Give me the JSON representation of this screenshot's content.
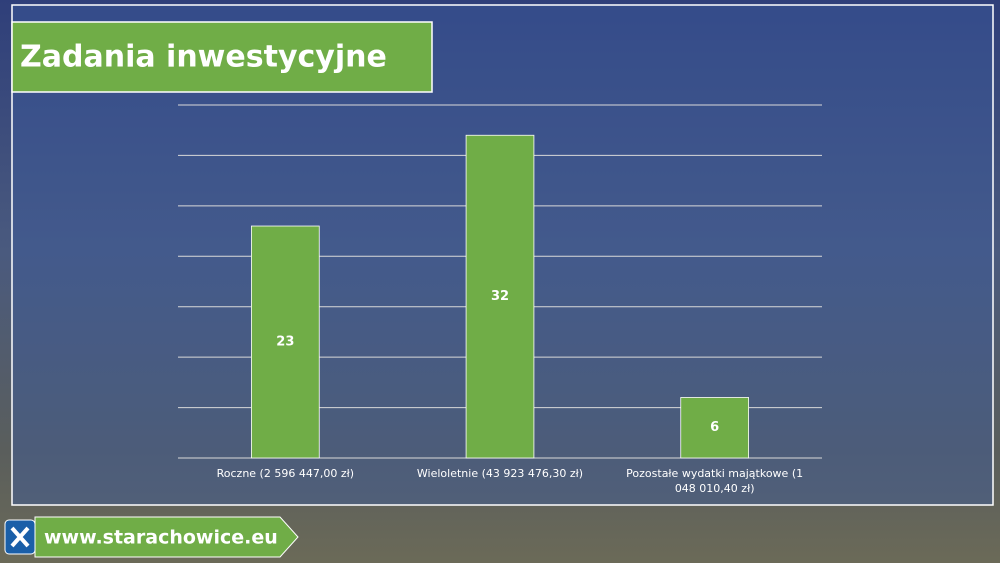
{
  "chart_data": {
    "type": "bar",
    "title": "Zadania inwestycyjne",
    "categories": [
      "Roczne (2 596 447,00 zł)",
      "Wieloletnie (43 923 476,30 zł)",
      "Pozostałe wydatki majątkowe (1 048 010,40 zł)"
    ],
    "values": [
      23,
      32,
      6
    ],
    "color": "#70ad47",
    "ylim": [
      0,
      35
    ],
    "yticks": [
      0,
      5,
      10,
      15,
      20,
      25,
      30,
      35
    ],
    "grid": true
  },
  "footer": {
    "url": "www.starachowice.eu"
  }
}
